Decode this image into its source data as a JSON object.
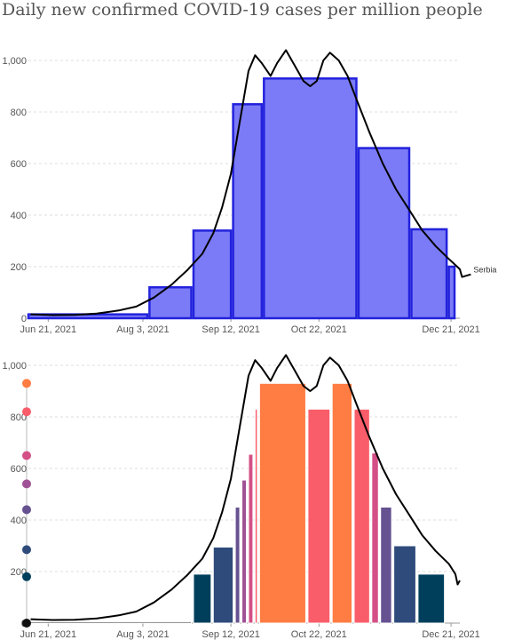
{
  "title": "Daily new confirmed COVID-19 cases per million people",
  "colors": {
    "top_bar_fill": "#7b7bf7",
    "top_bar_stroke": "#2222dd",
    "line": "#000000",
    "palette": [
      "#003f5c",
      "#2f4b7c",
      "#665191",
      "#a05195",
      "#d45087",
      "#f95d6a",
      "#ff7c43",
      "#ffa600"
    ]
  },
  "chart_data": [
    {
      "type": "bar",
      "title": "",
      "ylim": [
        0,
        1000
      ],
      "yticks": [
        0,
        200,
        400,
        600,
        800,
        1000
      ],
      "ytick_labels": [
        "0",
        "200",
        "400",
        "600",
        "800",
        "1,000"
      ],
      "xlim": [
        "2021-06-12",
        "2021-12-25"
      ],
      "xticks": [
        "2021-06-21",
        "2021-08-03",
        "2021-09-12",
        "2021-10-22",
        "2021-12-21"
      ],
      "xtick_labels": [
        "Jun 21, 2021",
        "Aug 3, 2021",
        "Sep 12, 2021",
        "Oct 22, 2021",
        "Dec 21, 2021"
      ],
      "bars": [
        {
          "start": "2021-06-12",
          "end": "2021-08-05",
          "value": 15
        },
        {
          "start": "2021-08-06",
          "end": "2021-08-25",
          "value": 120
        },
        {
          "start": "2021-08-26",
          "end": "2021-09-12",
          "value": 340
        },
        {
          "start": "2021-09-13",
          "end": "2021-09-26",
          "value": 830
        },
        {
          "start": "2021-09-27",
          "end": "2021-11-08",
          "value": 930
        },
        {
          "start": "2021-11-09",
          "end": "2021-12-02",
          "value": 660
        },
        {
          "start": "2021-12-03",
          "end": "2021-12-19",
          "value": 345
        },
        {
          "start": "2021-12-20",
          "end": "2021-12-30",
          "value": 200
        }
      ],
      "series": [
        {
          "name": "Serbia",
          "x": [
            "2021-06-13",
            "2021-06-23",
            "2021-07-03",
            "2021-07-13",
            "2021-07-23",
            "2021-07-31",
            "2021-08-08",
            "2021-08-16",
            "2021-08-23",
            "2021-08-30",
            "2021-09-04",
            "2021-09-08",
            "2021-09-12",
            "2021-09-16",
            "2021-09-20",
            "2021-09-23",
            "2021-09-26",
            "2021-09-30",
            "2021-10-03",
            "2021-10-07",
            "2021-10-11",
            "2021-10-15",
            "2021-10-18",
            "2021-10-21",
            "2021-10-24",
            "2021-10-27",
            "2021-10-31",
            "2021-11-04",
            "2021-11-08",
            "2021-11-14",
            "2021-11-20",
            "2021-11-26",
            "2021-12-02",
            "2021-12-08",
            "2021-12-14",
            "2021-12-20",
            "2021-12-25",
            "2021-12-26",
            "2021-12-30"
          ],
          "y": [
            15,
            12,
            13,
            18,
            30,
            45,
            80,
            130,
            185,
            250,
            330,
            430,
            560,
            760,
            960,
            1020,
            990,
            940,
            990,
            1040,
            980,
            920,
            900,
            920,
            1000,
            1030,
            1000,
            940,
            850,
            720,
            600,
            500,
            420,
            340,
            280,
            230,
            190,
            160,
            170
          ]
        }
      ]
    },
    {
      "type": "bar",
      "title": "",
      "ylim": [
        0,
        1000
      ],
      "yticks": [
        0,
        200,
        400,
        600,
        800,
        1000
      ],
      "ytick_labels": [
        "0",
        "200",
        "400",
        "600",
        "800",
        "1,000"
      ],
      "xlim": [
        "2021-06-12",
        "2021-12-25"
      ],
      "xticks": [
        "2021-06-21",
        "2021-08-03",
        "2021-09-12",
        "2021-10-22",
        "2021-12-21"
      ],
      "xtick_labels": [
        "Jun 21, 2021",
        "Aug 3, 2021",
        "Sep 12, 2021",
        "Oct 22, 2021",
        "Dec 21, 2021"
      ],
      "legend_values": [
        930,
        820,
        650,
        540,
        440,
        285,
        180,
        0
      ],
      "bars": [
        {
          "start": "2021-06-12",
          "end": "2021-08-25",
          "value": 5
        },
        {
          "start": "2021-08-26",
          "end": "2021-09-03",
          "value": 190
        },
        {
          "start": "2021-09-04",
          "end": "2021-09-13",
          "value": 295
        },
        {
          "start": "2021-09-14",
          "end": "2021-09-16",
          "value": 450
        },
        {
          "start": "2021-09-17",
          "end": "2021-09-19",
          "value": 555
        },
        {
          "start": "2021-09-20",
          "end": "2021-09-22",
          "value": 655
        },
        {
          "start": "2021-09-23",
          "end": "2021-09-24",
          "value": 830
        },
        {
          "start": "2021-09-25",
          "end": "2021-10-16",
          "value": 930
        },
        {
          "start": "2021-10-17",
          "end": "2021-10-27",
          "value": 830
        },
        {
          "start": "2021-10-28",
          "end": "2021-11-06",
          "value": 930
        },
        {
          "start": "2021-11-07",
          "end": "2021-11-14",
          "value": 830
        },
        {
          "start": "2021-11-15",
          "end": "2021-11-18",
          "value": 660
        },
        {
          "start": "2021-11-19",
          "end": "2021-11-24",
          "value": 450
        },
        {
          "start": "2021-11-25",
          "end": "2021-12-05",
          "value": 300
        },
        {
          "start": "2021-12-06",
          "end": "2021-12-18",
          "value": 190
        }
      ],
      "series": [
        {
          "name": "",
          "x": [
            "2021-06-13",
            "2021-06-23",
            "2021-07-03",
            "2021-07-13",
            "2021-07-23",
            "2021-07-31",
            "2021-08-08",
            "2021-08-16",
            "2021-08-23",
            "2021-08-30",
            "2021-09-04",
            "2021-09-08",
            "2021-09-12",
            "2021-09-16",
            "2021-09-20",
            "2021-09-23",
            "2021-09-26",
            "2021-09-30",
            "2021-10-03",
            "2021-10-07",
            "2021-10-11",
            "2021-10-15",
            "2021-10-18",
            "2021-10-21",
            "2021-10-24",
            "2021-10-27",
            "2021-10-31",
            "2021-11-04",
            "2021-11-08",
            "2021-11-14",
            "2021-11-20",
            "2021-11-26",
            "2021-12-02",
            "2021-12-08",
            "2021-12-14",
            "2021-12-20",
            "2021-12-23",
            "2021-12-24",
            "2021-12-25"
          ],
          "y": [
            15,
            12,
            13,
            18,
            30,
            45,
            80,
            130,
            185,
            250,
            330,
            430,
            560,
            760,
            960,
            1020,
            990,
            940,
            990,
            1040,
            980,
            920,
            900,
            920,
            1000,
            1030,
            1000,
            940,
            850,
            720,
            600,
            500,
            420,
            340,
            280,
            230,
            190,
            150,
            165
          ]
        }
      ]
    }
  ],
  "end_label": "Serbia"
}
